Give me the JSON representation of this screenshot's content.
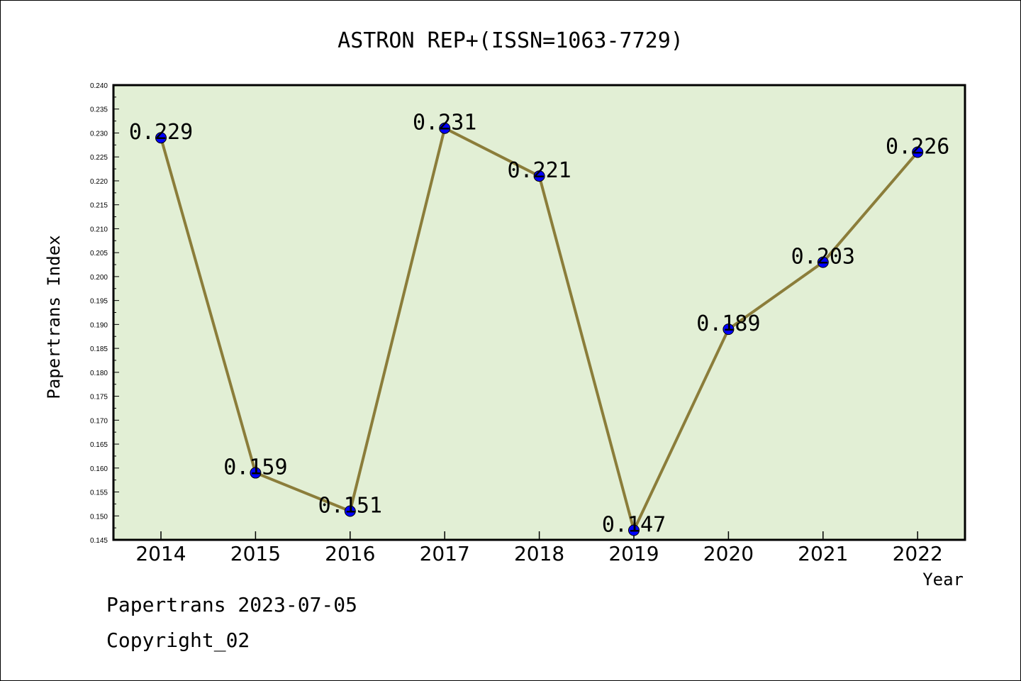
{
  "chart_data": {
    "type": "line",
    "title": "ASTRON REP+(ISSN=1063-7729)",
    "xlabel": "Year",
    "ylabel": "Papertrans Index",
    "categories": [
      "2014",
      "2015",
      "2016",
      "2017",
      "2018",
      "2019",
      "2020",
      "2021",
      "2022"
    ],
    "values": [
      0.229,
      0.159,
      0.151,
      0.231,
      0.221,
      0.147,
      0.189,
      0.203,
      0.226
    ],
    "data_labels": [
      "0.229",
      "0.159",
      "0.151",
      "0.231",
      "0.221",
      "0.147",
      "0.189",
      "0.203",
      "0.226"
    ],
    "ylim": [
      0.145,
      0.24
    ],
    "yticks": [
      "0.145",
      "0.150",
      "0.155",
      "0.160",
      "0.165",
      "0.170",
      "0.175",
      "0.180",
      "0.185",
      "0.190",
      "0.195",
      "0.200",
      "0.205",
      "0.210",
      "0.215",
      "0.220",
      "0.225",
      "0.230",
      "0.235",
      "0.240"
    ],
    "grid": false,
    "colors": {
      "plot_background": "#e2efd5",
      "line": "#8b7d3a",
      "marker": "#0000ff"
    }
  },
  "footer": {
    "line1": "Papertrans 2023-07-05",
    "line2": "Copyright_02"
  }
}
